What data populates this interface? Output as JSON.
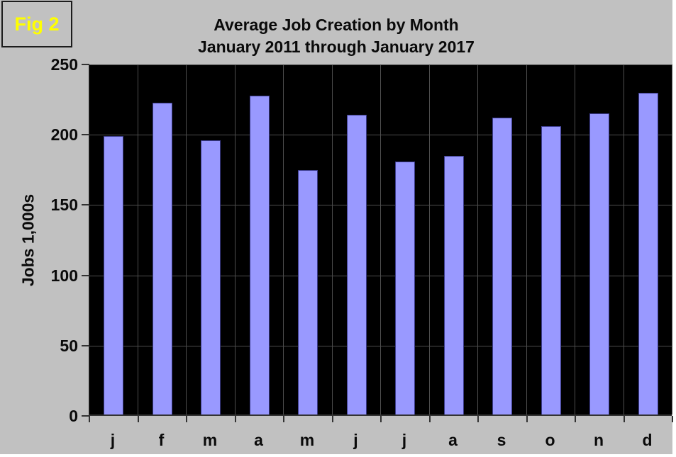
{
  "figure": {
    "label": "Fig 2"
  },
  "title": {
    "line1": "Average Job Creation by Month",
    "line2": "January 2011 through January 2017"
  },
  "y_axis": {
    "label": "Jobs 1,000s"
  },
  "chart_data": {
    "type": "bar",
    "title": "Average Job Creation by Month — January 2011 through January 2017",
    "categories": [
      "j",
      "f",
      "m",
      "a",
      "m",
      "j",
      "j",
      "a",
      "s",
      "o",
      "n",
      "d"
    ],
    "values": [
      198,
      222,
      195,
      227,
      174,
      213,
      180,
      184,
      211,
      205,
      214,
      229
    ],
    "xlabel": "",
    "ylabel": "Jobs 1,000s",
    "ylim": [
      0,
      250
    ],
    "ytick_interval": 50,
    "ytick_labels": [
      "0",
      "50",
      "100",
      "150",
      "200",
      "250"
    ],
    "grid": true,
    "legend": false,
    "colors": {
      "bar_fill": "#9999ff",
      "bar_border": "#3c3c8c",
      "plot_background": "#000000",
      "surface_background": "#c1c1c1",
      "gridline": "#4d4d4d",
      "axis": "#333333",
      "figure_label_color": "#ffff00",
      "text": "#0a0a0a"
    }
  }
}
